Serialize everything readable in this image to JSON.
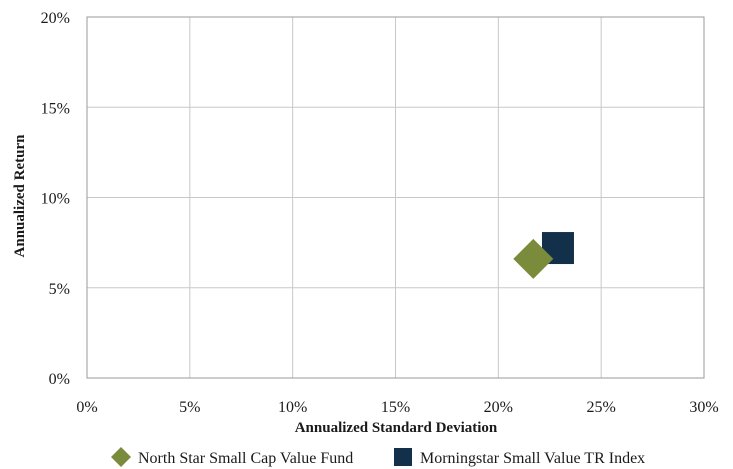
{
  "chart_data": {
    "type": "scatter",
    "xlabel": "Annualized Standard Deviation",
    "ylabel": "Annualized Return",
    "xlim": [
      0,
      30
    ],
    "ylim": [
      0,
      20
    ],
    "x_ticks": [
      "0%",
      "5%",
      "10%",
      "15%",
      "20%",
      "25%",
      "30%"
    ],
    "y_ticks": [
      "0%",
      "5%",
      "10%",
      "15%",
      "20%"
    ],
    "x_tick_values": [
      0,
      5,
      10,
      15,
      20,
      25,
      30
    ],
    "y_tick_values": [
      0,
      5,
      10,
      15,
      20
    ],
    "grid": true,
    "legend_position": "bottom",
    "series": [
      {
        "name": "North Star Small Cap Value Fund",
        "marker": "diamond",
        "color": "#7a8c3c",
        "x": 21.7,
        "y": 6.6
      },
      {
        "name": "Morningstar Small Value TR Index",
        "marker": "square",
        "color": "#13304a",
        "x": 22.9,
        "y": 7.2
      }
    ]
  }
}
